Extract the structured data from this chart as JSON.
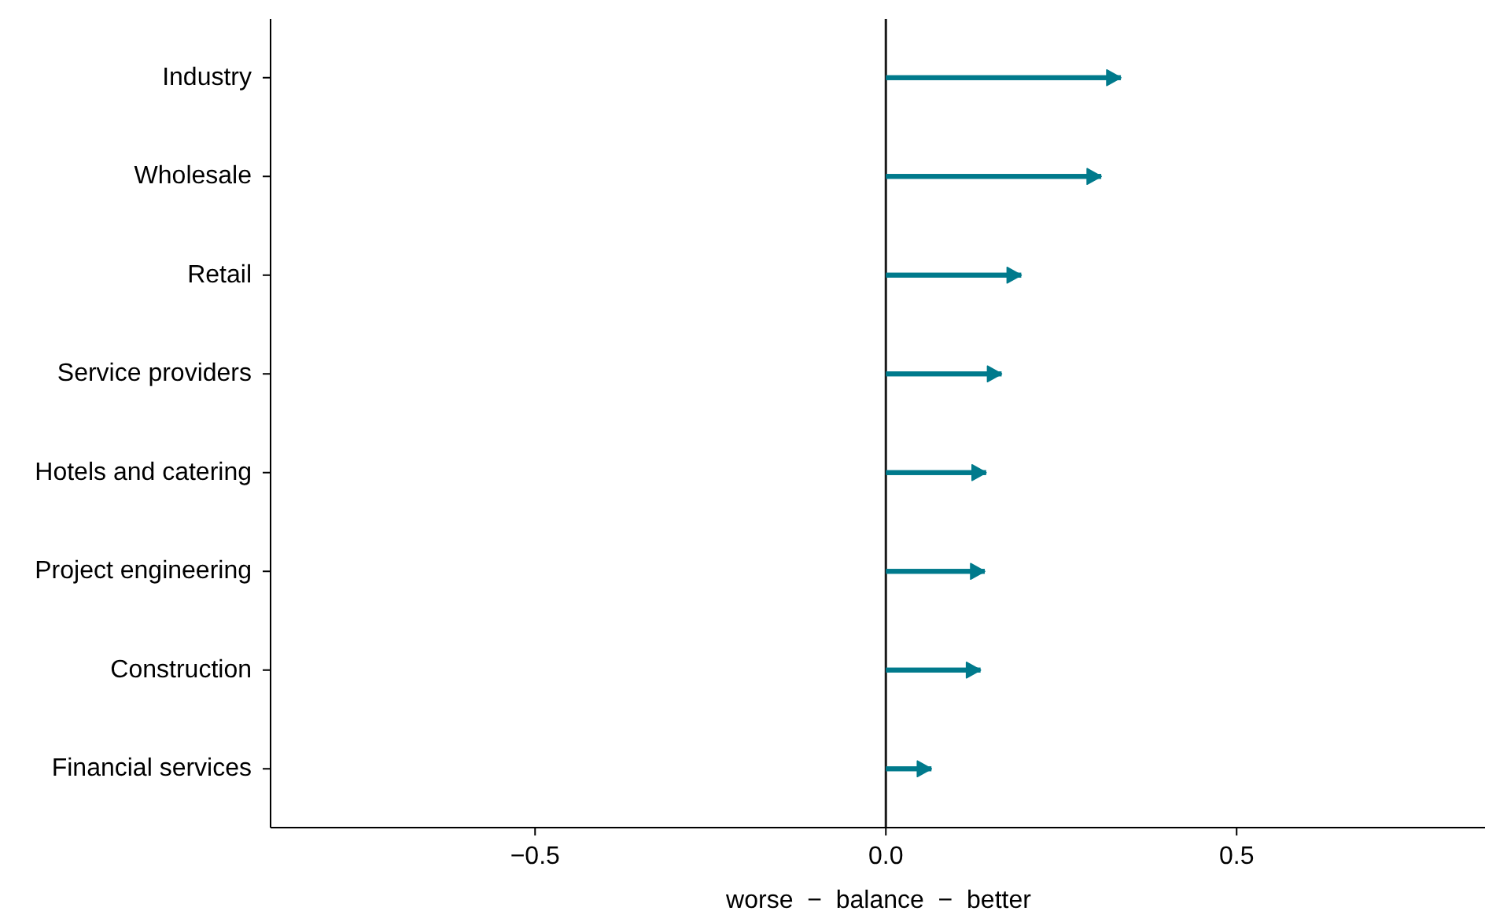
{
  "chart_data": {
    "type": "bar",
    "orientation": "horizontal",
    "xlabel": "worse  −  balance  −  better",
    "categories": [
      "Industry",
      "Wholesale",
      "Retail",
      "Service providers",
      "Hotels and catering",
      "Project engineering",
      "Construction",
      "Financial services"
    ],
    "values": [
      0.335,
      0.307,
      0.193,
      0.165,
      0.143,
      0.141,
      0.135,
      0.065
    ],
    "color": "#007a8c",
    "xlim": [
      -0.877,
      0.854
    ],
    "xticks": [
      {
        "value": -0.5,
        "label": "−0.5"
      },
      {
        "value": 0,
        "label": "0.0"
      },
      {
        "value": 0.5,
        "label": "0.5"
      }
    ],
    "ref_lines": [
      {
        "axis": "x",
        "value": 0,
        "color": "#1a1a1a"
      }
    ],
    "grid": false
  }
}
